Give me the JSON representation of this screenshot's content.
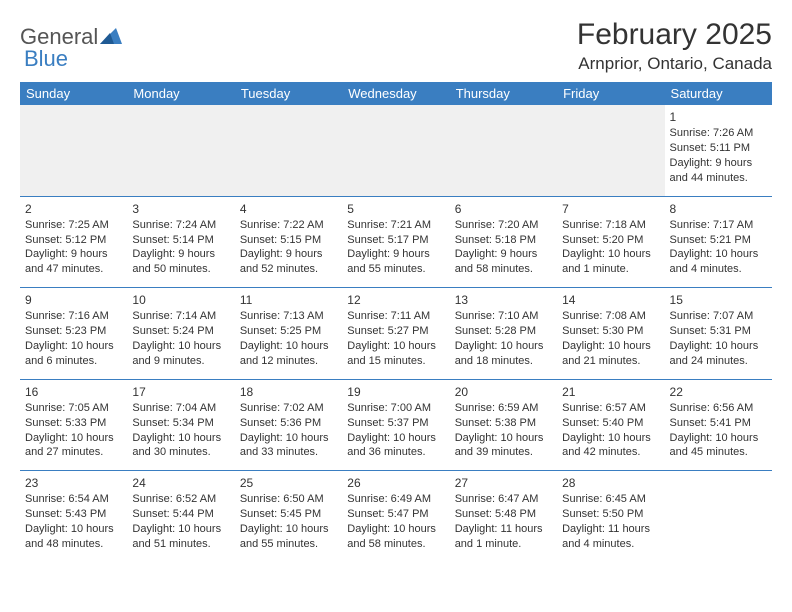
{
  "logo": {
    "general": "General",
    "blue": "Blue"
  },
  "title": "February 2025",
  "location": "Arnprior, Ontario, Canada",
  "colors": {
    "brand_blue": "#3a7ec1",
    "text": "#333333",
    "bg": "#ffffff",
    "blank_bg": "#f0f0f0"
  },
  "typography": {
    "title_fontsize": 30,
    "location_fontsize": 17,
    "dayheader_fontsize": 13,
    "cell_fontsize": 11
  },
  "day_headers": [
    "Sunday",
    "Monday",
    "Tuesday",
    "Wednesday",
    "Thursday",
    "Friday",
    "Saturday"
  ],
  "weeks": [
    [
      null,
      null,
      null,
      null,
      null,
      null,
      {
        "n": "1",
        "sunrise": "Sunrise: 7:26 AM",
        "sunset": "Sunset: 5:11 PM",
        "daylight": "Daylight: 9 hours and 44 minutes."
      }
    ],
    [
      {
        "n": "2",
        "sunrise": "Sunrise: 7:25 AM",
        "sunset": "Sunset: 5:12 PM",
        "daylight": "Daylight: 9 hours and 47 minutes."
      },
      {
        "n": "3",
        "sunrise": "Sunrise: 7:24 AM",
        "sunset": "Sunset: 5:14 PM",
        "daylight": "Daylight: 9 hours and 50 minutes."
      },
      {
        "n": "4",
        "sunrise": "Sunrise: 7:22 AM",
        "sunset": "Sunset: 5:15 PM",
        "daylight": "Daylight: 9 hours and 52 minutes."
      },
      {
        "n": "5",
        "sunrise": "Sunrise: 7:21 AM",
        "sunset": "Sunset: 5:17 PM",
        "daylight": "Daylight: 9 hours and 55 minutes."
      },
      {
        "n": "6",
        "sunrise": "Sunrise: 7:20 AM",
        "sunset": "Sunset: 5:18 PM",
        "daylight": "Daylight: 9 hours and 58 minutes."
      },
      {
        "n": "7",
        "sunrise": "Sunrise: 7:18 AM",
        "sunset": "Sunset: 5:20 PM",
        "daylight": "Daylight: 10 hours and 1 minute."
      },
      {
        "n": "8",
        "sunrise": "Sunrise: 7:17 AM",
        "sunset": "Sunset: 5:21 PM",
        "daylight": "Daylight: 10 hours and 4 minutes."
      }
    ],
    [
      {
        "n": "9",
        "sunrise": "Sunrise: 7:16 AM",
        "sunset": "Sunset: 5:23 PM",
        "daylight": "Daylight: 10 hours and 6 minutes."
      },
      {
        "n": "10",
        "sunrise": "Sunrise: 7:14 AM",
        "sunset": "Sunset: 5:24 PM",
        "daylight": "Daylight: 10 hours and 9 minutes."
      },
      {
        "n": "11",
        "sunrise": "Sunrise: 7:13 AM",
        "sunset": "Sunset: 5:25 PM",
        "daylight": "Daylight: 10 hours and 12 minutes."
      },
      {
        "n": "12",
        "sunrise": "Sunrise: 7:11 AM",
        "sunset": "Sunset: 5:27 PM",
        "daylight": "Daylight: 10 hours and 15 minutes."
      },
      {
        "n": "13",
        "sunrise": "Sunrise: 7:10 AM",
        "sunset": "Sunset: 5:28 PM",
        "daylight": "Daylight: 10 hours and 18 minutes."
      },
      {
        "n": "14",
        "sunrise": "Sunrise: 7:08 AM",
        "sunset": "Sunset: 5:30 PM",
        "daylight": "Daylight: 10 hours and 21 minutes."
      },
      {
        "n": "15",
        "sunrise": "Sunrise: 7:07 AM",
        "sunset": "Sunset: 5:31 PM",
        "daylight": "Daylight: 10 hours and 24 minutes."
      }
    ],
    [
      {
        "n": "16",
        "sunrise": "Sunrise: 7:05 AM",
        "sunset": "Sunset: 5:33 PM",
        "daylight": "Daylight: 10 hours and 27 minutes."
      },
      {
        "n": "17",
        "sunrise": "Sunrise: 7:04 AM",
        "sunset": "Sunset: 5:34 PM",
        "daylight": "Daylight: 10 hours and 30 minutes."
      },
      {
        "n": "18",
        "sunrise": "Sunrise: 7:02 AM",
        "sunset": "Sunset: 5:36 PM",
        "daylight": "Daylight: 10 hours and 33 minutes."
      },
      {
        "n": "19",
        "sunrise": "Sunrise: 7:00 AM",
        "sunset": "Sunset: 5:37 PM",
        "daylight": "Daylight: 10 hours and 36 minutes."
      },
      {
        "n": "20",
        "sunrise": "Sunrise: 6:59 AM",
        "sunset": "Sunset: 5:38 PM",
        "daylight": "Daylight: 10 hours and 39 minutes."
      },
      {
        "n": "21",
        "sunrise": "Sunrise: 6:57 AM",
        "sunset": "Sunset: 5:40 PM",
        "daylight": "Daylight: 10 hours and 42 minutes."
      },
      {
        "n": "22",
        "sunrise": "Sunrise: 6:56 AM",
        "sunset": "Sunset: 5:41 PM",
        "daylight": "Daylight: 10 hours and 45 minutes."
      }
    ],
    [
      {
        "n": "23",
        "sunrise": "Sunrise: 6:54 AM",
        "sunset": "Sunset: 5:43 PM",
        "daylight": "Daylight: 10 hours and 48 minutes."
      },
      {
        "n": "24",
        "sunrise": "Sunrise: 6:52 AM",
        "sunset": "Sunset: 5:44 PM",
        "daylight": "Daylight: 10 hours and 51 minutes."
      },
      {
        "n": "25",
        "sunrise": "Sunrise: 6:50 AM",
        "sunset": "Sunset: 5:45 PM",
        "daylight": "Daylight: 10 hours and 55 minutes."
      },
      {
        "n": "26",
        "sunrise": "Sunrise: 6:49 AM",
        "sunset": "Sunset: 5:47 PM",
        "daylight": "Daylight: 10 hours and 58 minutes."
      },
      {
        "n": "27",
        "sunrise": "Sunrise: 6:47 AM",
        "sunset": "Sunset: 5:48 PM",
        "daylight": "Daylight: 11 hours and 1 minute."
      },
      {
        "n": "28",
        "sunrise": "Sunrise: 6:45 AM",
        "sunset": "Sunset: 5:50 PM",
        "daylight": "Daylight: 11 hours and 4 minutes."
      },
      null
    ]
  ]
}
